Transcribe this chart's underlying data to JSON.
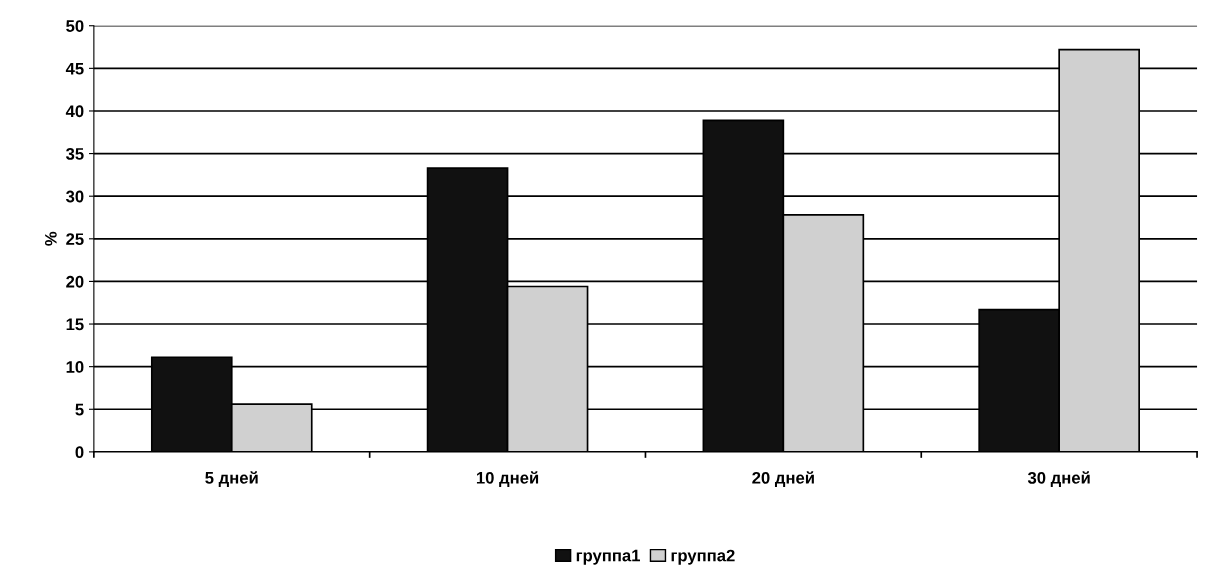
{
  "chart_data": {
    "type": "bar",
    "ylabel": "%",
    "categories": [
      "5 дней",
      "10 дней",
      "20 дней",
      "30 дней"
    ],
    "series": [
      {
        "name": "группа1",
        "color": "#111111",
        "values": [
          11.1,
          33.3,
          38.9,
          16.7
        ]
      },
      {
        "name": "группа2",
        "color": "#d0d0d0",
        "values": [
          5.6,
          19.4,
          27.8,
          47.2
        ]
      }
    ],
    "ylim": [
      0,
      50
    ],
    "yticks": [
      0,
      5,
      10,
      15,
      20,
      25,
      30,
      35,
      40,
      45,
      50
    ],
    "grid": "y",
    "legend": "bottom"
  }
}
